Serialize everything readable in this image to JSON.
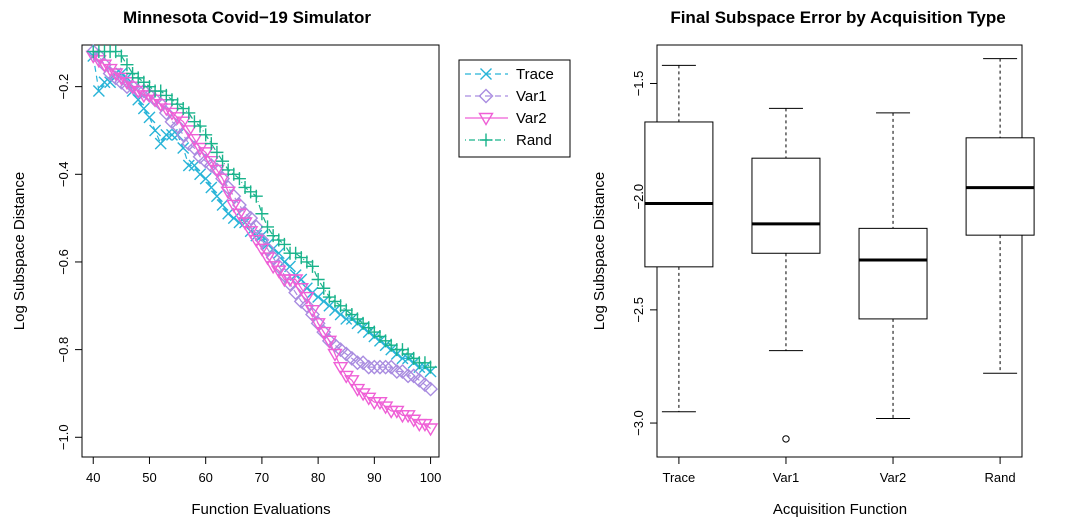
{
  "chart_data": [
    {
      "type": "line",
      "title": "Minnesota Covid−19 Simulator",
      "xlabel": "Function Evaluations",
      "ylabel": "Log Subspace Distance",
      "xlim": [
        38,
        101.5
      ],
      "ylim": [
        -1.045,
        -0.105
      ],
      "x_ticks": [
        40,
        50,
        60,
        70,
        80,
        90,
        100
      ],
      "x_tick_labels": [
        "40",
        "50",
        "60",
        "70",
        "80",
        "90",
        "100"
      ],
      "y_ticks": [
        -1.0,
        -0.8,
        -0.6,
        -0.4,
        -0.2
      ],
      "y_tick_labels": [
        "−1.0",
        "−0.8",
        "−0.6",
        "−0.4",
        "−0.2"
      ],
      "legend_position": "outside-right-top",
      "legend": [
        {
          "name": "Trace",
          "color": "#28b4d8",
          "marker": "x",
          "dash": "dashed"
        },
        {
          "name": "Var1",
          "color": "#a98ce0",
          "marker": "diamond",
          "dash": "dashed"
        },
        {
          "name": "Var2",
          "color": "#ef5fd6",
          "marker": "triangle-down",
          "dash": "solid"
        },
        {
          "name": "Rand",
          "color": "#19b38b",
          "marker": "plus",
          "dash": "dotdash"
        }
      ],
      "series": [
        {
          "name": "Trace",
          "x": [
            40,
            41,
            42,
            43,
            44,
            45,
            46,
            47,
            48,
            49,
            50,
            51,
            52,
            53,
            54,
            55,
            56,
            57,
            58,
            59,
            60,
            61,
            62,
            63,
            64,
            65,
            66,
            67,
            68,
            69,
            70,
            71,
            72,
            73,
            74,
            75,
            76,
            77,
            78,
            79,
            80,
            81,
            82,
            83,
            84,
            85,
            86,
            87,
            88,
            89,
            90,
            91,
            92,
            93,
            94,
            95,
            96,
            97,
            98,
            99,
            100
          ],
          "y": [
            -0.13,
            -0.21,
            -0.19,
            -0.19,
            -0.17,
            -0.17,
            -0.18,
            -0.21,
            -0.23,
            -0.25,
            -0.27,
            -0.3,
            -0.33,
            -0.31,
            -0.31,
            -0.31,
            -0.34,
            -0.38,
            -0.38,
            -0.4,
            -0.41,
            -0.43,
            -0.45,
            -0.47,
            -0.49,
            -0.5,
            -0.51,
            -0.51,
            -0.53,
            -0.54,
            -0.54,
            -0.56,
            -0.57,
            -0.58,
            -0.6,
            -0.61,
            -0.63,
            -0.64,
            -0.66,
            -0.67,
            -0.68,
            -0.69,
            -0.7,
            -0.71,
            -0.72,
            -0.73,
            -0.73,
            -0.74,
            -0.75,
            -0.76,
            -0.77,
            -0.78,
            -0.79,
            -0.8,
            -0.81,
            -0.82,
            -0.82,
            -0.83,
            -0.84,
            -0.84,
            -0.85
          ]
        },
        {
          "name": "Var1",
          "x": [
            40,
            41,
            42,
            43,
            44,
            45,
            46,
            47,
            48,
            49,
            50,
            51,
            52,
            53,
            54,
            55,
            56,
            57,
            58,
            59,
            60,
            61,
            62,
            63,
            64,
            65,
            66,
            67,
            68,
            69,
            70,
            71,
            72,
            73,
            74,
            75,
            76,
            77,
            78,
            79,
            80,
            81,
            82,
            83,
            84,
            85,
            86,
            87,
            88,
            89,
            90,
            91,
            92,
            93,
            94,
            95,
            96,
            97,
            98,
            99,
            100
          ],
          "y": [
            -0.12,
            -0.13,
            -0.15,
            -0.17,
            -0.18,
            -0.19,
            -0.2,
            -0.2,
            -0.21,
            -0.21,
            -0.22,
            -0.23,
            -0.24,
            -0.26,
            -0.28,
            -0.29,
            -0.31,
            -0.33,
            -0.34,
            -0.36,
            -0.37,
            -0.38,
            -0.39,
            -0.41,
            -0.43,
            -0.45,
            -0.47,
            -0.49,
            -0.5,
            -0.52,
            -0.55,
            -0.57,
            -0.59,
            -0.61,
            -0.63,
            -0.65,
            -0.67,
            -0.69,
            -0.7,
            -0.72,
            -0.74,
            -0.76,
            -0.78,
            -0.79,
            -0.8,
            -0.81,
            -0.82,
            -0.83,
            -0.83,
            -0.84,
            -0.84,
            -0.84,
            -0.84,
            -0.84,
            -0.85,
            -0.85,
            -0.86,
            -0.86,
            -0.87,
            -0.88,
            -0.89
          ]
        },
        {
          "name": "Var2",
          "x": [
            40,
            41,
            42,
            43,
            44,
            45,
            46,
            47,
            48,
            49,
            50,
            51,
            52,
            53,
            54,
            55,
            56,
            57,
            58,
            59,
            60,
            61,
            62,
            63,
            64,
            65,
            66,
            67,
            68,
            69,
            70,
            71,
            72,
            73,
            74,
            75,
            76,
            77,
            78,
            79,
            80,
            81,
            82,
            83,
            84,
            85,
            86,
            87,
            88,
            89,
            90,
            91,
            92,
            93,
            94,
            95,
            96,
            97,
            98,
            99,
            100
          ],
          "y": [
            -0.13,
            -0.14,
            -0.15,
            -0.16,
            -0.17,
            -0.18,
            -0.19,
            -0.2,
            -0.21,
            -0.22,
            -0.22,
            -0.23,
            -0.24,
            -0.25,
            -0.26,
            -0.27,
            -0.28,
            -0.3,
            -0.32,
            -0.34,
            -0.35,
            -0.37,
            -0.39,
            -0.41,
            -0.44,
            -0.47,
            -0.49,
            -0.51,
            -0.53,
            -0.55,
            -0.57,
            -0.59,
            -0.61,
            -0.62,
            -0.64,
            -0.64,
            -0.64,
            -0.66,
            -0.68,
            -0.71,
            -0.74,
            -0.76,
            -0.78,
            -0.81,
            -0.84,
            -0.86,
            -0.87,
            -0.89,
            -0.9,
            -0.91,
            -0.92,
            -0.92,
            -0.93,
            -0.94,
            -0.94,
            -0.95,
            -0.95,
            -0.96,
            -0.97,
            -0.97,
            -0.98
          ]
        },
        {
          "name": "Rand",
          "x": [
            40,
            41,
            42,
            43,
            44,
            45,
            46,
            47,
            48,
            49,
            50,
            51,
            52,
            53,
            54,
            55,
            56,
            57,
            58,
            59,
            60,
            61,
            62,
            63,
            64,
            65,
            66,
            67,
            68,
            69,
            70,
            71,
            72,
            73,
            74,
            75,
            76,
            77,
            78,
            79,
            80,
            81,
            82,
            83,
            84,
            85,
            86,
            87,
            88,
            89,
            90,
            91,
            92,
            93,
            94,
            95,
            96,
            97,
            98,
            99,
            100
          ],
          "y": [
            -0.12,
            -0.12,
            -0.12,
            -0.12,
            -0.12,
            -0.13,
            -0.15,
            -0.17,
            -0.18,
            -0.19,
            -0.2,
            -0.21,
            -0.21,
            -0.22,
            -0.23,
            -0.24,
            -0.25,
            -0.26,
            -0.28,
            -0.29,
            -0.31,
            -0.33,
            -0.35,
            -0.37,
            -0.39,
            -0.4,
            -0.41,
            -0.43,
            -0.44,
            -0.45,
            -0.49,
            -0.52,
            -0.54,
            -0.55,
            -0.56,
            -0.58,
            -0.58,
            -0.59,
            -0.6,
            -0.61,
            -0.64,
            -0.66,
            -0.68,
            -0.69,
            -0.7,
            -0.71,
            -0.72,
            -0.73,
            -0.74,
            -0.75,
            -0.76,
            -0.77,
            -0.78,
            -0.79,
            -0.8,
            -0.8,
            -0.81,
            -0.82,
            -0.83,
            -0.83,
            -0.84
          ]
        }
      ]
    },
    {
      "type": "box",
      "title": "Final Subspace Error by Acquisition Type",
      "xlabel": "Acquisition Function",
      "ylabel": "Log Subspace Distance",
      "categories": [
        "Trace",
        "Var1",
        "Var2",
        "Rand"
      ],
      "ylim": [
        -3.15,
        -1.33
      ],
      "y_ticks": [
        -3.0,
        -2.5,
        -2.0,
        -1.5
      ],
      "y_tick_labels": [
        "−3.0",
        "−2.5",
        "−2.0",
        "−1.5"
      ],
      "boxes": [
        {
          "name": "Trace",
          "whisker_low": -2.95,
          "q1": -2.31,
          "median": -2.03,
          "q3": -1.67,
          "whisker_high": -1.42,
          "outliers": []
        },
        {
          "name": "Var1",
          "whisker_low": -2.68,
          "q1": -2.25,
          "median": -2.12,
          "q3": -1.83,
          "whisker_high": -1.61,
          "outliers": [
            -3.07
          ]
        },
        {
          "name": "Var2",
          "whisker_low": -2.98,
          "q1": -2.54,
          "median": -2.28,
          "q3": -2.14,
          "whisker_high": -1.63,
          "outliers": []
        },
        {
          "name": "Rand",
          "whisker_low": -2.78,
          "q1": -2.17,
          "median": -1.96,
          "q3": -1.74,
          "whisker_high": -1.39,
          "outliers": []
        }
      ]
    }
  ]
}
